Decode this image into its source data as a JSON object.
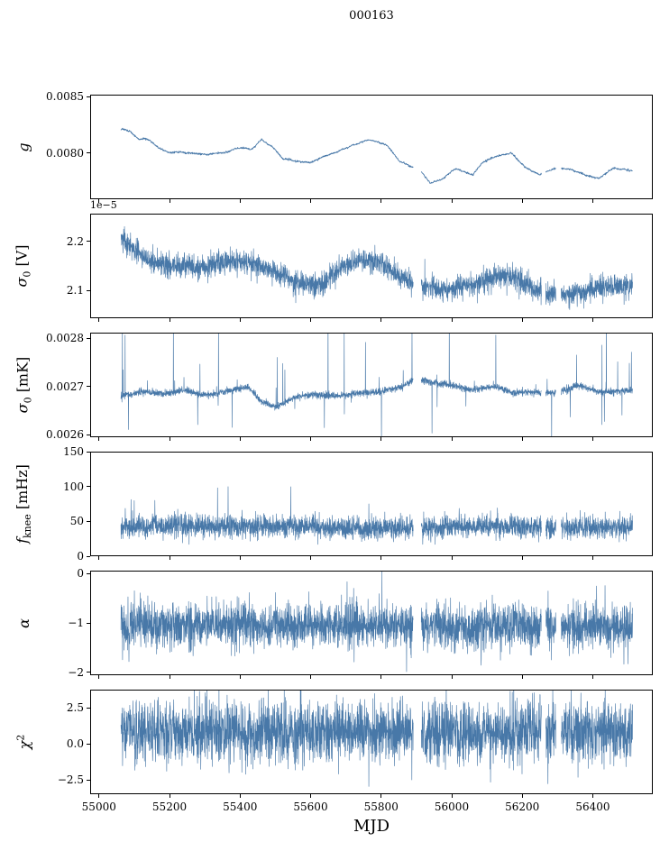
{
  "title": "000163",
  "xlabel": "MJD",
  "accent_color": "#4878a8",
  "axes": {
    "xlim": [
      54975,
      56570
    ],
    "xticks": [
      {
        "v": 55000,
        "label": "55000"
      },
      {
        "v": 55200,
        "label": "55200"
      },
      {
        "v": 55400,
        "label": "55400"
      },
      {
        "v": 55600,
        "label": "55600"
      },
      {
        "v": 55800,
        "label": "55800"
      },
      {
        "v": 56000,
        "label": "56000"
      },
      {
        "v": 56200,
        "label": "56200"
      },
      {
        "v": 56400,
        "label": "56400"
      }
    ],
    "gaps": [
      [
        55891,
        55914
      ],
      [
        56256,
        56268
      ],
      [
        56297,
        56312
      ]
    ]
  },
  "chart_data": [
    {
      "type": "line",
      "ylabel_plain": "g",
      "ylabel_parts": [
        {
          "t": "g",
          "i": 1
        }
      ],
      "ylim": [
        0.00759,
        0.00852
      ],
      "yticks": [
        {
          "v": 0.008,
          "label": "0.0080"
        },
        {
          "v": 0.0085,
          "label": "0.0085"
        }
      ],
      "series": {
        "name": "gain g",
        "x_start": 55060,
        "x_end": 56515,
        "n": 1500,
        "mean_x": [
          55060,
          55085,
          55110,
          55140,
          55170,
          55200,
          55250,
          55300,
          55350,
          55400,
          55430,
          55460,
          55490,
          55520,
          55560,
          55600,
          55640,
          55680,
          55720,
          55760,
          55790,
          55820,
          55850,
          55880,
          55910,
          55940,
          55970,
          56010,
          56060,
          56090,
          56130,
          56170,
          56210,
          56250,
          56300,
          56340,
          56380,
          56420,
          56460,
          56515
        ],
        "mean_y": [
          0.00822,
          0.0082,
          0.00813,
          0.00812,
          0.00804,
          0.00801,
          0.008,
          0.00799,
          0.008,
          0.00805,
          0.00803,
          0.00812,
          0.00806,
          0.00795,
          0.00793,
          0.00791,
          0.00797,
          0.00802,
          0.00807,
          0.00812,
          0.0081,
          0.00806,
          0.00793,
          0.00788,
          0.00785,
          0.00773,
          0.00776,
          0.00786,
          0.0078,
          0.00792,
          0.00797,
          0.008,
          0.00787,
          0.0078,
          0.00787,
          0.00785,
          0.0078,
          0.00777,
          0.00786,
          0.00784
        ],
        "sigma": 1e-05,
        "smooth_window": 15,
        "jitter": 4e-06,
        "spike_prob": 0,
        "spike_scale": 0,
        "lw": 0.9
      }
    },
    {
      "type": "line",
      "ylabel_plain": "sigma_0 [V]",
      "ylabel_parts": [
        {
          "t": "σ",
          "i": 1
        },
        {
          "t": "0",
          "sub": 1
        },
        {
          "t": " [V]"
        }
      ],
      "offset_text": "1e−5",
      "ylim": [
        2.043,
        2.257
      ],
      "yticks": [
        {
          "v": 2.1,
          "label": "2.1"
        },
        {
          "v": 2.2,
          "label": "2.2"
        }
      ],
      "series": {
        "name": "sigma0 volts (x1e-5)",
        "x_start": 55060,
        "x_end": 56515,
        "n": 3200,
        "mean_x": [
          55060,
          55090,
          55130,
          55180,
          55230,
          55280,
          55330,
          55390,
          55440,
          55490,
          55540,
          55590,
          55640,
          55690,
          55740,
          55800,
          55860,
          55920,
          55980,
          56050,
          56120,
          56180,
          56240,
          56300,
          56360,
          56420,
          56470,
          56515
        ],
        "mean_y": [
          2.205,
          2.19,
          2.165,
          2.15,
          2.15,
          2.145,
          2.155,
          2.16,
          2.155,
          2.14,
          2.125,
          2.108,
          2.112,
          2.15,
          2.165,
          2.155,
          2.125,
          2.105,
          2.102,
          2.11,
          2.13,
          2.125,
          2.1,
          2.09,
          2.096,
          2.103,
          2.108,
          2.11
        ],
        "sigma": 0.012,
        "spike_prob": 0.008,
        "spike_scale": 0.018,
        "spike_pos": 0.5,
        "lw": 0.65
      }
    },
    {
      "type": "line",
      "ylabel_plain": "sigma_0 [mK]",
      "ylabel_parts": [
        {
          "t": "σ",
          "i": 1
        },
        {
          "t": "0",
          "sub": 1
        },
        {
          "t": " [mK]"
        }
      ],
      "ylim": [
        0.0025944,
        0.0028113
      ],
      "yticks": [
        {
          "v": 0.0026,
          "label": "0.0026"
        },
        {
          "v": 0.0027,
          "label": "0.0027"
        },
        {
          "v": 0.0028,
          "label": "0.0028"
        }
      ],
      "series": {
        "name": "sigma0 mK",
        "x_start": 55060,
        "x_end": 56515,
        "n": 3200,
        "mean_x": [
          55060,
          55120,
          55180,
          55240,
          55300,
          55360,
          55420,
          55460,
          55500,
          55560,
          55620,
          55680,
          55740,
          55800,
          55860,
          55900,
          55950,
          56000,
          56060,
          56120,
          56180,
          56240,
          56300,
          56360,
          56420,
          56515
        ],
        "mean_y": [
          0.00268,
          0.002688,
          0.002684,
          0.002692,
          0.00268,
          0.00269,
          0.002698,
          0.002668,
          0.002656,
          0.002678,
          0.002682,
          0.00268,
          0.002686,
          0.002688,
          0.0027,
          0.002716,
          0.002708,
          0.002702,
          0.002692,
          0.0027,
          0.002686,
          0.002688,
          0.002686,
          0.002702,
          0.002688,
          0.002692
        ],
        "sigma": 3.5e-06,
        "spike_prob": 0.02,
        "spike_scale": 5.5e-05,
        "spike_pos": 0.65,
        "lw": 0.65
      }
    },
    {
      "type": "line",
      "ylabel_plain": "f_knee [mHz]",
      "ylabel_parts": [
        {
          "t": "f",
          "i": 1
        },
        {
          "t": "knee",
          "sub": 1
        },
        {
          "t": " [mHz]"
        }
      ],
      "ylim": [
        0,
        150
      ],
      "yticks": [
        {
          "v": 0,
          "label": "0"
        },
        {
          "v": 50,
          "label": "50"
        },
        {
          "v": 100,
          "label": "100"
        },
        {
          "v": 150,
          "label": "150"
        }
      ],
      "series": {
        "name": "knee frequency",
        "x_start": 55060,
        "x_end": 56515,
        "n": 3200,
        "mean_x": [
          55060,
          55400,
          55700,
          55900,
          56100,
          56300,
          56515
        ],
        "mean_y": [
          42,
          43,
          40,
          40,
          43,
          40,
          41
        ],
        "sigma": 8,
        "spike_prob": 0.012,
        "spike_scale": 16,
        "spike_pos": 0.85,
        "clip_min": 16,
        "lw": 0.65
      }
    },
    {
      "type": "line",
      "ylabel_plain": "alpha",
      "ylabel_parts": [
        {
          "t": "α",
          "i": 1
        }
      ],
      "ylim": [
        -2.06,
        0.06
      ],
      "yticks": [
        {
          "v": 0,
          "label": "0"
        },
        {
          "v": -1,
          "label": "−1"
        },
        {
          "v": -2,
          "label": "−2"
        }
      ],
      "series": {
        "name": "spectral slope alpha",
        "x_start": 55060,
        "x_end": 56515,
        "n": 3200,
        "mean_x": [
          55060,
          56515
        ],
        "mean_y": [
          -1.05,
          -1.07
        ],
        "sigma": 0.23,
        "spike_prob": 0.012,
        "spike_scale": 0.3,
        "spike_pos": 0.5,
        "lw": 0.65
      }
    },
    {
      "type": "line",
      "ylabel_plain": "chi^2",
      "ylabel_parts": [
        {
          "t": "χ",
          "i": 1
        },
        {
          "t": "2",
          "sup": 1
        }
      ],
      "ylim": [
        -3.5,
        3.75
      ],
      "yticks": [
        {
          "v": 2.5,
          "label": "2.5"
        },
        {
          "v": 0.0,
          "label": "0.0"
        },
        {
          "v": -2.5,
          "label": "−2.5"
        }
      ],
      "series": {
        "name": "reduced chi-square (normalized)",
        "x_start": 55060,
        "x_end": 56515,
        "n": 3200,
        "mean_x": [
          55060,
          56515
        ],
        "mean_y": [
          0.85,
          0.85
        ],
        "sigma": 1.05,
        "spike_prob": 0.02,
        "spike_scale": 1.3,
        "spike_pos": 0.55,
        "lw": 0.65
      }
    }
  ]
}
